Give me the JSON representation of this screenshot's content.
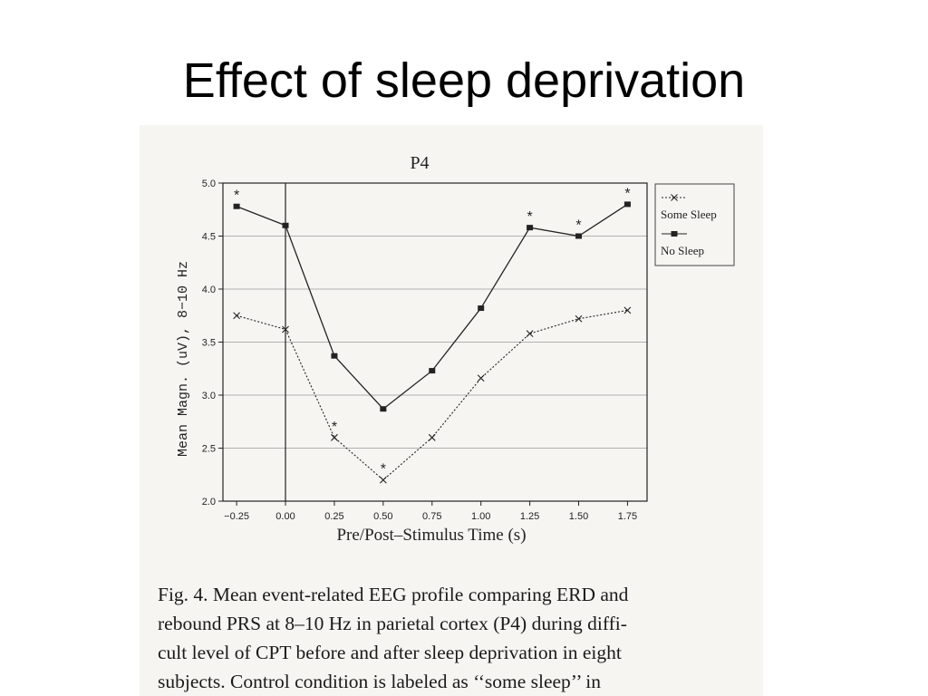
{
  "slide": {
    "title": "Effect of sleep deprivation"
  },
  "chart_data": {
    "type": "line",
    "title": "P4",
    "xlabel": "Pre/Post–Stimulus Time (s)",
    "ylabel": "Mean Magn. (uV),  8−10 Hz",
    "xlim": [
      -0.32,
      1.85
    ],
    "ylim": [
      2.0,
      5.0
    ],
    "x_ticks": [
      -0.25,
      0.0,
      0.25,
      0.5,
      0.75,
      1.0,
      1.25,
      1.5,
      1.75
    ],
    "x_tick_labels": [
      "−0.25",
      "0.00",
      "0.25",
      "0.50",
      "0.75",
      "1.00",
      "1.25",
      "1.50",
      "1.75"
    ],
    "y_ticks": [
      2.0,
      2.5,
      3.0,
      3.5,
      4.0,
      4.5,
      5.0
    ],
    "y_tick_labels": [
      "2.0",
      "2.5",
      "3.0",
      "3.5",
      "4.0",
      "4.5",
      "5.0"
    ],
    "grid": "horizontal",
    "vertical_reference_x": 0.0,
    "legend_position": "right",
    "x": [
      -0.25,
      0.0,
      0.25,
      0.5,
      0.75,
      1.0,
      1.25,
      1.5,
      1.75
    ],
    "series": [
      {
        "name": "Some Sleep",
        "style": "dotted",
        "marker": "x",
        "values": [
          3.75,
          3.62,
          2.6,
          2.2,
          2.6,
          3.16,
          3.58,
          3.72,
          3.8
        ]
      },
      {
        "name": "No Sleep",
        "style": "solid",
        "marker": "square",
        "values": [
          4.78,
          4.6,
          3.37,
          2.87,
          3.23,
          3.82,
          4.58,
          4.5,
          4.8
        ]
      }
    ],
    "annotations": [
      {
        "text": "*",
        "series": "No Sleep",
        "x": -0.25
      },
      {
        "text": "*",
        "series": "Some Sleep",
        "x": 0.25
      },
      {
        "text": "*",
        "series": "Some Sleep",
        "x": 0.5
      },
      {
        "text": "*",
        "series": "No Sleep",
        "x": 1.25
      },
      {
        "text": "*",
        "series": "No Sleep",
        "x": 1.5
      },
      {
        "text": "*",
        "series": "No Sleep",
        "x": 1.75
      }
    ],
    "colors": {
      "ink": "#222222",
      "grid": "#9a9a9a",
      "paper": "#f6f5f2"
    }
  },
  "caption": {
    "lines": [
      "Fig. 4.  Mean event-related EEG profile comparing ERD and",
      "rebound PRS at 8–10 Hz in parietal cortex (P4) during diffi-",
      "cult level of CPT before and after sleep deprivation in eight",
      "subjects. Control condition is labeled as ‘‘some sleep’’ in"
    ]
  }
}
